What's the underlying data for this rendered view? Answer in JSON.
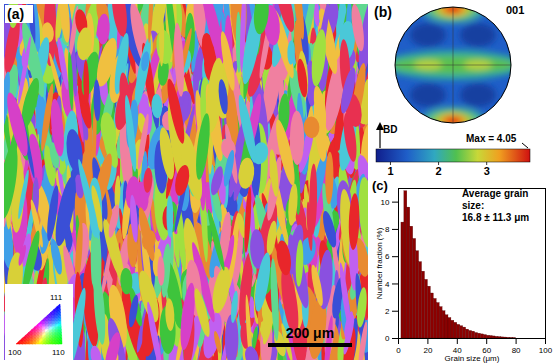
{
  "figure": {
    "ipf_map": {
      "panel_label": "(a)",
      "scale_bar": "200 μm",
      "ipf_legend": {
        "corner_labels": [
          "111",
          "100",
          "110"
        ]
      }
    },
    "pole_figure": {
      "panel_label": "(b)",
      "plane": "001",
      "direction_label": "BD",
      "max_label": "Max = 4.05",
      "colorbar": {
        "range": [
          0.7,
          3.9
        ],
        "ticks": [
          1,
          2,
          3
        ]
      }
    }
  },
  "chart_data": {
    "type": "histogram",
    "panel_label": "(c)",
    "annotations": [
      "Average grain size:",
      "16.8 ± 11.3 μm"
    ],
    "x_label": "Grain size (μm)",
    "y_label": "Number fraction (%)",
    "bins": [
      2,
      4,
      6,
      8,
      10,
      12,
      14,
      16,
      18,
      20,
      22,
      24,
      26,
      28,
      30,
      32,
      34,
      36,
      38,
      40,
      42,
      44,
      46,
      48,
      50,
      52,
      54,
      56,
      58,
      60,
      62,
      64,
      66,
      68,
      70,
      72,
      74,
      76,
      78,
      80
    ],
    "values": [
      8.5,
      10.8,
      9.6,
      8.2,
      7.3,
      6.4,
      5.6,
      4.9,
      4.3,
      3.8,
      3.3,
      2.9,
      2.6,
      2.3,
      2.0,
      1.7,
      1.5,
      1.3,
      1.15,
      1.0,
      0.9,
      0.8,
      0.65,
      0.55,
      0.5,
      0.4,
      0.35,
      0.3,
      0.25,
      0.2,
      0.18,
      0.15,
      0.12,
      0.1,
      0.08,
      0.07,
      0.05,
      0.04,
      0.03
    ],
    "color": "#8b0000",
    "xlim": [
      0,
      100
    ],
    "xticks": [
      0,
      20,
      40,
      60,
      80,
      100
    ],
    "ylim": [
      0,
      11
    ],
    "yticks": [
      0,
      2,
      4,
      6,
      8,
      10
    ],
    "grid": false
  }
}
